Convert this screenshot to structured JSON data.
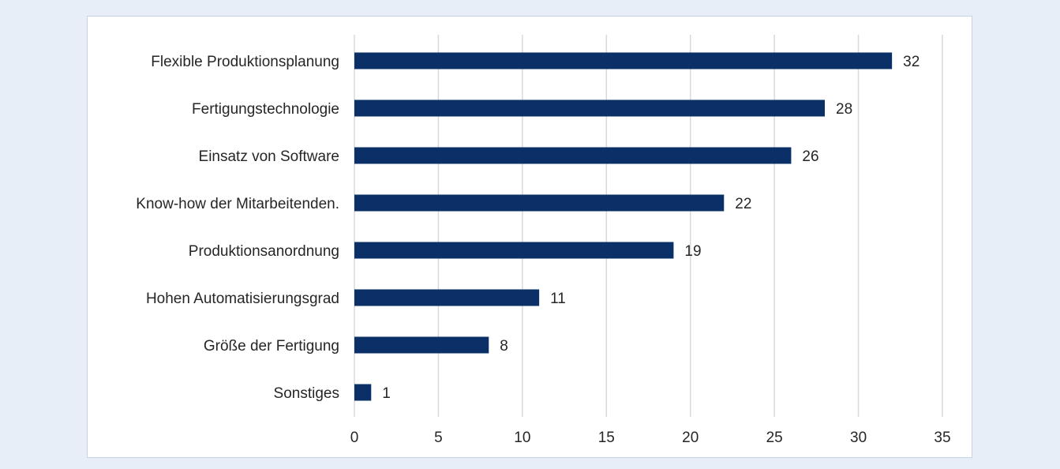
{
  "chart_data": {
    "type": "bar",
    "orientation": "horizontal",
    "categories": [
      "Flexible Produktionsplanung",
      "Fertigungstechnologie",
      "Einsatz von Software",
      "Know-how der Mitarbeitenden.",
      "Produktionsanordnung",
      "Hohen Automatisierungsgrad",
      "Größe der Fertigung",
      "Sonstiges"
    ],
    "values": [
      32,
      28,
      26,
      22,
      19,
      11,
      8,
      1
    ],
    "data_labels": [
      "32",
      "28",
      "26",
      "22",
      "19",
      "11",
      "8",
      "1"
    ],
    "x_ticks": [
      "0",
      "5",
      "10",
      "15",
      "20",
      "25",
      "30",
      "35"
    ],
    "xlim": [
      0,
      35
    ],
    "grid": true,
    "legend": "none",
    "title": "",
    "xlabel": "",
    "ylabel": "",
    "colors": {
      "bar": "#0b3068",
      "grid": "#d9d9d9",
      "background": "#e8eef8",
      "plot_background": "#ffffff"
    }
  }
}
